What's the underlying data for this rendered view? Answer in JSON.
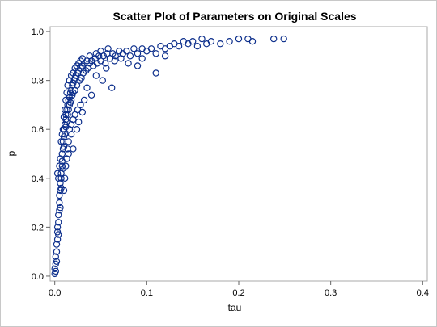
{
  "chart_data": {
    "type": "scatter",
    "title": "Scatter Plot of Parameters on Original Scales",
    "xlabel": "tau",
    "ylabel": "p",
    "xlim": [
      -0.005,
      0.405
    ],
    "ylim": [
      -0.02,
      1.02
    ],
    "xticks": [
      "0.0",
      "0.1",
      "0.2",
      "0.3",
      "0.4"
    ],
    "xtick_values": [
      0.0,
      0.1,
      0.2,
      0.3,
      0.4
    ],
    "yticks": [
      "0.0",
      "0.2",
      "0.4",
      "0.6",
      "0.8",
      "1.0"
    ],
    "ytick_values": [
      0.0,
      0.2,
      0.4,
      0.6,
      0.8,
      1.0
    ],
    "grid": false,
    "legend": "none",
    "marker": "open-circle",
    "series": [
      {
        "color": "#0d2f8c",
        "points": [
          [
            0.0,
            0.01
          ],
          [
            0.0,
            0.03
          ],
          [
            0.001,
            0.02
          ],
          [
            0.001,
            0.05
          ],
          [
            0.001,
            0.08
          ],
          [
            0.002,
            0.1
          ],
          [
            0.002,
            0.13
          ],
          [
            0.002,
            0.06
          ],
          [
            0.003,
            0.15
          ],
          [
            0.003,
            0.18
          ],
          [
            0.003,
            0.2
          ],
          [
            0.004,
            0.22
          ],
          [
            0.004,
            0.25
          ],
          [
            0.004,
            0.17
          ],
          [
            0.005,
            0.27
          ],
          [
            0.005,
            0.3
          ],
          [
            0.005,
            0.33
          ],
          [
            0.006,
            0.35
          ],
          [
            0.006,
            0.28
          ],
          [
            0.006,
            0.38
          ],
          [
            0.007,
            0.4
          ],
          [
            0.007,
            0.42
          ],
          [
            0.007,
            0.36
          ],
          [
            0.008,
            0.45
          ],
          [
            0.008,
            0.47
          ],
          [
            0.008,
            0.5
          ],
          [
            0.009,
            0.52
          ],
          [
            0.009,
            0.44
          ],
          [
            0.009,
            0.55
          ],
          [
            0.01,
            0.57
          ],
          [
            0.01,
            0.53
          ],
          [
            0.01,
            0.6
          ],
          [
            0.011,
            0.62
          ],
          [
            0.011,
            0.58
          ],
          [
            0.012,
            0.64
          ],
          [
            0.012,
            0.66
          ],
          [
            0.012,
            0.61
          ],
          [
            0.013,
            0.68
          ],
          [
            0.013,
            0.63
          ],
          [
            0.014,
            0.7
          ],
          [
            0.014,
            0.66
          ],
          [
            0.015,
            0.72
          ],
          [
            0.015,
            0.68
          ],
          [
            0.016,
            0.73
          ],
          [
            0.016,
            0.7
          ],
          [
            0.017,
            0.75
          ],
          [
            0.017,
            0.71
          ],
          [
            0.018,
            0.76
          ],
          [
            0.018,
            0.72
          ],
          [
            0.019,
            0.78
          ],
          [
            0.019,
            0.74
          ],
          [
            0.02,
            0.79
          ],
          [
            0.02,
            0.75
          ],
          [
            0.021,
            0.8
          ],
          [
            0.022,
            0.81
          ],
          [
            0.022,
            0.76
          ],
          [
            0.023,
            0.82
          ],
          [
            0.024,
            0.78
          ],
          [
            0.025,
            0.83
          ],
          [
            0.026,
            0.84
          ],
          [
            0.027,
            0.8
          ],
          [
            0.028,
            0.85
          ],
          [
            0.029,
            0.81
          ],
          [
            0.03,
            0.86
          ],
          [
            0.031,
            0.83
          ],
          [
            0.032,
            0.87
          ],
          [
            0.034,
            0.84
          ],
          [
            0.035,
            0.88
          ],
          [
            0.036,
            0.85
          ],
          [
            0.038,
            0.87
          ],
          [
            0.04,
            0.88
          ],
          [
            0.042,
            0.86
          ],
          [
            0.044,
            0.89
          ],
          [
            0.046,
            0.87
          ],
          [
            0.048,
            0.9
          ],
          [
            0.05,
            0.88
          ],
          [
            0.053,
            0.9
          ],
          [
            0.055,
            0.87
          ],
          [
            0.057,
            0.91
          ],
          [
            0.06,
            0.89
          ],
          [
            0.063,
            0.91
          ],
          [
            0.066,
            0.9
          ],
          [
            0.07,
            0.92
          ],
          [
            0.074,
            0.91
          ],
          [
            0.078,
            0.92
          ],
          [
            0.082,
            0.9
          ],
          [
            0.086,
            0.93
          ],
          [
            0.09,
            0.91
          ],
          [
            0.095,
            0.93
          ],
          [
            0.1,
            0.92
          ],
          [
            0.105,
            0.93
          ],
          [
            0.11,
            0.91
          ],
          [
            0.115,
            0.94
          ],
          [
            0.12,
            0.93
          ],
          [
            0.125,
            0.94
          ],
          [
            0.13,
            0.95
          ],
          [
            0.135,
            0.94
          ],
          [
            0.14,
            0.96
          ],
          [
            0.145,
            0.95
          ],
          [
            0.15,
            0.96
          ],
          [
            0.155,
            0.94
          ],
          [
            0.16,
            0.97
          ],
          [
            0.165,
            0.95
          ],
          [
            0.17,
            0.96
          ],
          [
            0.18,
            0.95
          ],
          [
            0.19,
            0.96
          ],
          [
            0.2,
            0.97
          ],
          [
            0.21,
            0.97
          ],
          [
            0.215,
            0.96
          ],
          [
            0.238,
            0.97
          ],
          [
            0.249,
            0.97
          ],
          [
            0.09,
            0.86
          ],
          [
            0.095,
            0.89
          ],
          [
            0.11,
            0.83
          ],
          [
            0.12,
            0.9
          ],
          [
            0.08,
            0.87
          ],
          [
            0.062,
            0.77
          ],
          [
            0.052,
            0.8
          ],
          [
            0.04,
            0.74
          ],
          [
            0.032,
            0.72
          ],
          [
            0.028,
            0.7
          ],
          [
            0.025,
            0.68
          ],
          [
            0.022,
            0.66
          ],
          [
            0.02,
            0.64
          ],
          [
            0.018,
            0.62
          ],
          [
            0.016,
            0.6
          ],
          [
            0.015,
            0.55
          ],
          [
            0.014,
            0.52
          ],
          [
            0.013,
            0.48
          ],
          [
            0.012,
            0.45
          ],
          [
            0.011,
            0.4
          ],
          [
            0.01,
            0.35
          ],
          [
            0.015,
            0.5
          ],
          [
            0.018,
            0.58
          ],
          [
            0.02,
            0.52
          ],
          [
            0.024,
            0.6
          ],
          [
            0.026,
            0.63
          ],
          [
            0.03,
            0.67
          ],
          [
            0.035,
            0.77
          ],
          [
            0.045,
            0.82
          ],
          [
            0.056,
            0.85
          ],
          [
            0.065,
            0.88
          ],
          [
            0.072,
            0.89
          ],
          [
            0.004,
            0.4
          ],
          [
            0.003,
            0.42
          ],
          [
            0.005,
            0.45
          ],
          [
            0.006,
            0.48
          ],
          [
            0.007,
            0.55
          ],
          [
            0.008,
            0.58
          ],
          [
            0.009,
            0.6
          ],
          [
            0.01,
            0.65
          ],
          [
            0.011,
            0.68
          ],
          [
            0.012,
            0.72
          ],
          [
            0.013,
            0.75
          ],
          [
            0.014,
            0.78
          ],
          [
            0.016,
            0.8
          ],
          [
            0.018,
            0.82
          ],
          [
            0.02,
            0.83
          ],
          [
            0.022,
            0.85
          ],
          [
            0.024,
            0.86
          ],
          [
            0.026,
            0.87
          ],
          [
            0.028,
            0.88
          ],
          [
            0.03,
            0.89
          ],
          [
            0.038,
            0.9
          ],
          [
            0.045,
            0.91
          ],
          [
            0.05,
            0.92
          ],
          [
            0.058,
            0.93
          ]
        ]
      }
    ]
  }
}
